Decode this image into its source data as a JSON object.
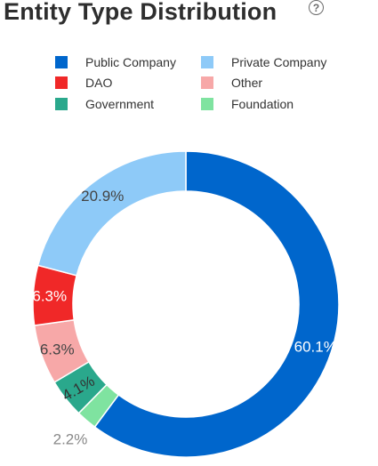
{
  "header": {
    "title": "Entity Type Distribution",
    "help_glyph": "?"
  },
  "chart_data": {
    "type": "pie",
    "hole": true,
    "categories": [
      "Public Company",
      "Foundation",
      "Government",
      "Other",
      "DAO",
      "Private Company"
    ],
    "values": [
      60.1,
      2.2,
      4.1,
      6.3,
      6.3,
      20.9
    ],
    "labels": [
      "60.1%",
      "2.2%",
      "4.1%",
      "6.3%",
      "6.3%",
      "20.9%"
    ],
    "colors": [
      "#0066cc",
      "#7fe3a0",
      "#2aa88c",
      "#f7a8a8",
      "#f02828",
      "#8ecaf8"
    ],
    "legend_order": [
      "Public Company",
      "Private Company",
      "DAO",
      "Other",
      "Government",
      "Foundation"
    ],
    "legend_placement": "top"
  }
}
